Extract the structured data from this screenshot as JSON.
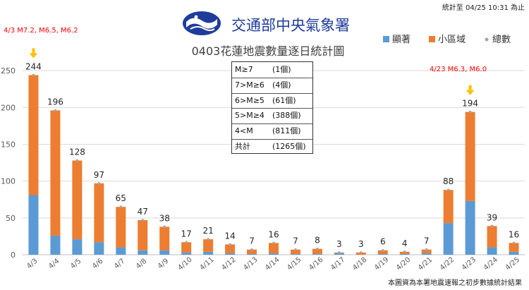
{
  "header": {
    "agency": "交通部中央氣象署",
    "stats_until": "統計至 04/25 10:31 為止",
    "footer": "本圖資為本署地震速報之初步數據統計結果"
  },
  "summary_table": [
    {
      "label": "M≥7",
      "value": "(1個)"
    },
    {
      "label": "7>M≥6",
      "value": "(4個)"
    },
    {
      "label": "6>M≥5",
      "value": "(61個)"
    },
    {
      "label": "5>M≥4",
      "value": "(388個)"
    },
    {
      "label": "4<M",
      "value": "(811個)"
    },
    {
      "label": "共計",
      "value": "(1265個)"
    }
  ],
  "colors": {
    "notable": "#5b9bd5",
    "small_area": "#ed7d31",
    "total": "#a5a5a5",
    "annotation": "#ff0000",
    "arrow": "#ffc000",
    "logo": "#1f3c9b"
  },
  "icons": [
    "cwa-logo-icon",
    "arrow-down-icon"
  ],
  "chart_data": {
    "type": "bar",
    "stacked": true,
    "title": "0403花蓮地震數量逐日統計圖",
    "xlabel": "",
    "ylabel": "",
    "ylim": [
      0,
      300
    ],
    "yticks": [
      0,
      50,
      100,
      150,
      200,
      250
    ],
    "grid": true,
    "legend": "top-right",
    "categories": [
      "4/3",
      "4/4",
      "4/5",
      "4/6",
      "4/7",
      "4/8",
      "4/9",
      "4/10",
      "4/11",
      "4/12",
      "4/13",
      "4/14",
      "4/15",
      "4/16",
      "4/17",
      "4/18",
      "4/19",
      "4/20",
      "4/21",
      "4/22",
      "4/23",
      "4/24",
      "4/25"
    ],
    "series": [
      {
        "name": "顯著",
        "values": [
          81,
          26,
          21,
          17,
          10,
          6,
          6,
          3,
          4,
          2,
          1,
          2,
          1,
          1,
          2,
          0,
          1,
          1,
          2,
          43,
          73,
          10,
          4
        ]
      },
      {
        "name": "小區域",
        "values": [
          163,
          170,
          107,
          80,
          55,
          41,
          32,
          14,
          17,
          12,
          6,
          14,
          6,
          7,
          1,
          3,
          5,
          3,
          5,
          45,
          121,
          29,
          12
        ]
      }
    ],
    "totals": {
      "name": "總數",
      "values": [
        244,
        196,
        128,
        97,
        65,
        47,
        38,
        17,
        21,
        14,
        7,
        16,
        7,
        8,
        3,
        3,
        6,
        4,
        7,
        88,
        194,
        39,
        16
      ]
    },
    "annotations": [
      {
        "category": "4/3",
        "text": "4/3 M7.2, M6.5, M6.2"
      },
      {
        "category": "4/23",
        "text": "4/23 M6.3, M6.0"
      }
    ]
  }
}
